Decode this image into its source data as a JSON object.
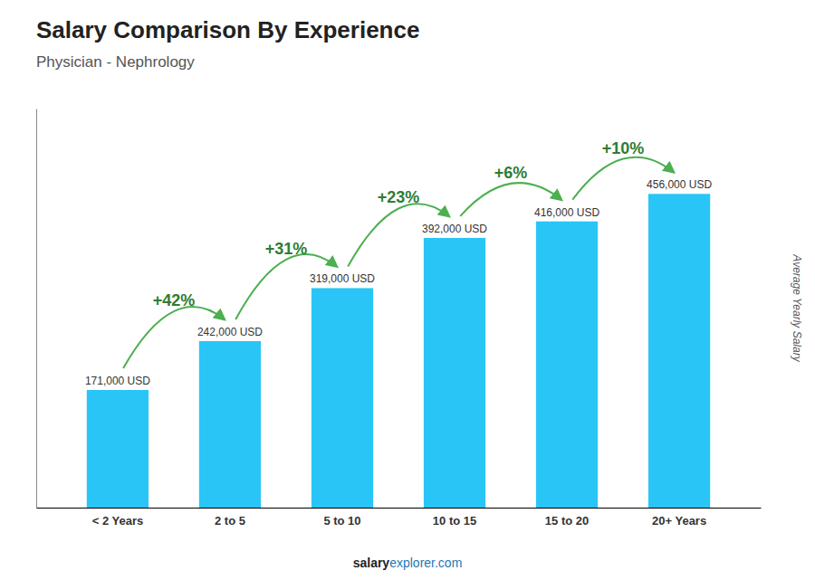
{
  "chart_data": {
    "type": "bar",
    "title": "Salary Comparison By Experience",
    "subtitle": "Physician - Nephrology",
    "ylabel": "Average Yearly Salary",
    "categories": [
      "< 2 Years",
      "2 to 5",
      "5 to 10",
      "10 to 15",
      "15 to 20",
      "20+ Years"
    ],
    "values": [
      171000,
      242000,
      319000,
      392000,
      416000,
      456000
    ],
    "value_labels": [
      "171,000 USD",
      "242,000 USD",
      "319,000 USD",
      "392,000 USD",
      "416,000 USD",
      "456,000 USD"
    ],
    "data_labels": true,
    "annotations": [
      "+42%",
      "+31%",
      "+23%",
      "+6%",
      "+10%"
    ],
    "footer": [
      "salary",
      "explorer.com"
    ],
    "color": "#29c5f6",
    "ylim": [
      0,
      580000
    ],
    "tick_labels": "x",
    "grid": false
  }
}
